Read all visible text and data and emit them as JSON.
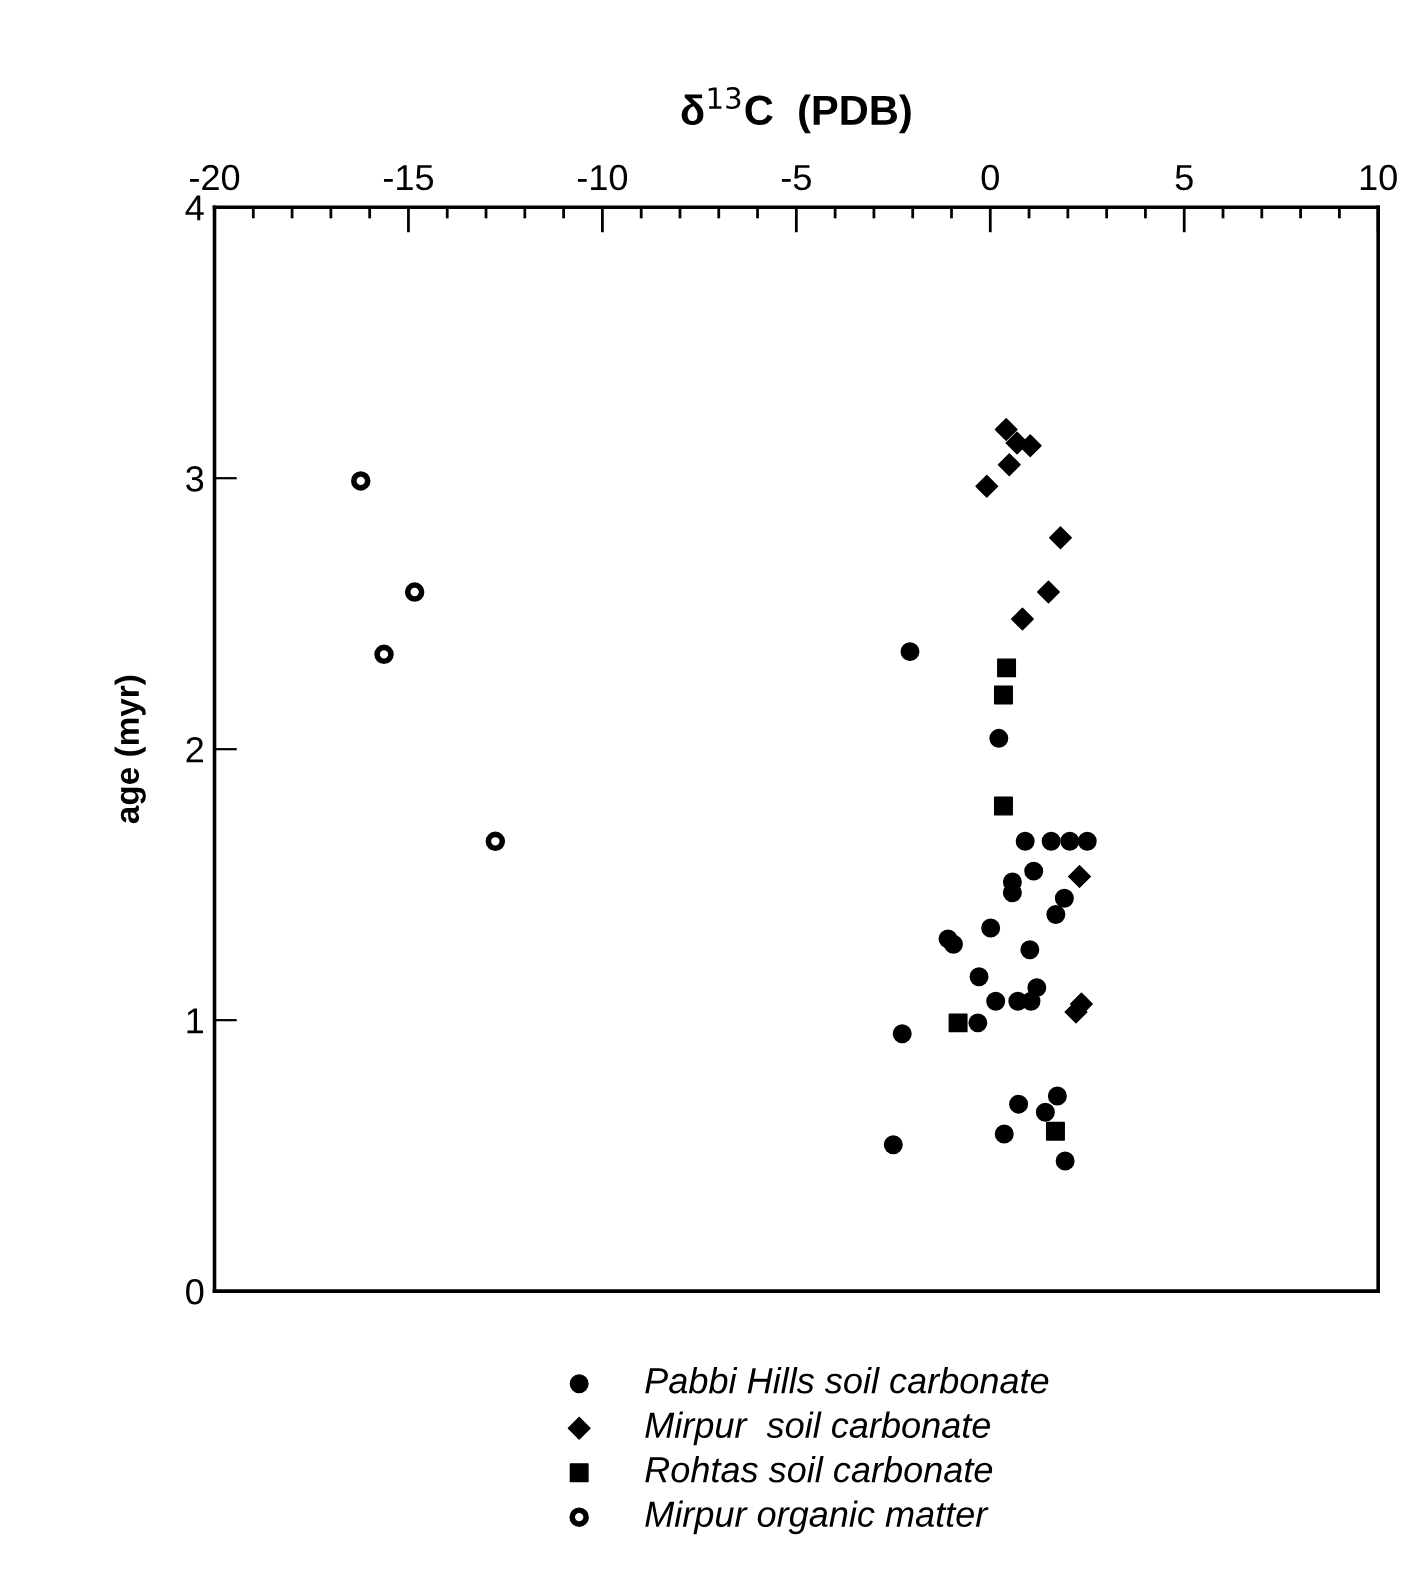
{
  "chart_data": {
    "type": "scatter",
    "xlabel": "δ$^{13}$C  (PDB)",
    "ylabel": "age (myr)",
    "xlim": [
      -20,
      10
    ],
    "ylim": [
      0,
      4
    ],
    "xticks": [
      -20,
      {
        "value": -19,
        "label": null
      },
      {
        "value": -18,
        "label": null
      },
      {
        "value": -17,
        "label": null
      },
      {
        "value": -16,
        "label": null
      },
      -15,
      {
        "value": -14,
        "label": null
      },
      {
        "value": -13,
        "label": null
      },
      {
        "value": -12,
        "label": null
      },
      {
        "value": -11,
        "label": null
      },
      -10,
      {
        "value": -9,
        "label": null
      },
      {
        "value": -8,
        "label": null
      },
      {
        "value": -7,
        "label": null
      },
      {
        "value": -6,
        "label": null
      },
      -5,
      {
        "value": -4,
        "label": null
      },
      {
        "value": -3,
        "label": null
      },
      {
        "value": -2,
        "label": null
      },
      {
        "value": -1,
        "label": null
      },
      0,
      {
        "value": 1,
        "label": null
      },
      {
        "value": 2,
        "label": null
      },
      {
        "value": 3,
        "label": null
      },
      {
        "value": 4,
        "label": null
      },
      5,
      {
        "value": 6,
        "label": null
      },
      {
        "value": 7,
        "label": null
      },
      {
        "value": 8,
        "label": null
      },
      {
        "value": 9,
        "label": null
      },
      10
    ],
    "yticks": [
      0,
      1,
      2,
      3,
      4
    ],
    "grid": false,
    "legend": "bottom",
    "series": [
      {
        "name": "Pabbi Hills soil carbonate",
        "color": "#000000",
        "marker": "circle",
        "x": [
          -2.07,
          0.22,
          0.9,
          1.57,
          2.05,
          2.5,
          1.12,
          0.57,
          0.57,
          1.91,
          1.69,
          -1.09,
          -0.95,
          0.01,
          1.02,
          -0.29,
          1.2,
          1.05,
          0.71,
          0.14,
          -0.32,
          -2.27,
          0.73,
          1.73,
          1.42,
          0.36,
          1.93,
          -2.5
        ],
        "values": [
          2.36,
          2.04,
          1.66,
          1.66,
          1.66,
          1.66,
          1.55,
          1.51,
          1.47,
          1.45,
          1.39,
          1.3,
          1.28,
          1.34,
          1.26,
          1.16,
          1.12,
          1.07,
          1.07,
          1.07,
          0.99,
          0.95,
          0.69,
          0.72,
          0.66,
          0.58,
          0.48,
          0.54
        ]
      },
      {
        "name": "Mirpur  soil carbonate",
        "color": "#000000",
        "marker": "diamond",
        "x": [
          0.41,
          0.69,
          1.03,
          0.49,
          -0.09,
          1.81,
          1.5,
          0.83,
          2.3,
          2.21,
          2.35
        ],
        "values": [
          3.18,
          3.13,
          3.12,
          3.05,
          2.97,
          2.78,
          2.58,
          2.48,
          1.53,
          1.03,
          1.06
        ]
      },
      {
        "name": "Rohtas soil carbonate",
        "color": "#000000",
        "marker": "square",
        "x": [
          0.42,
          0.34,
          0.34,
          -0.83,
          1.68
        ],
        "values": [
          2.3,
          2.2,
          1.79,
          0.99,
          0.59
        ]
      },
      {
        "name": "Mirpur organic matter",
        "color": "#000000",
        "marker": "open circle",
        "x": [
          -16.23,
          -14.84,
          -15.63,
          -12.76
        ],
        "values": [
          2.99,
          2.58,
          2.35,
          1.66
        ]
      }
    ]
  }
}
